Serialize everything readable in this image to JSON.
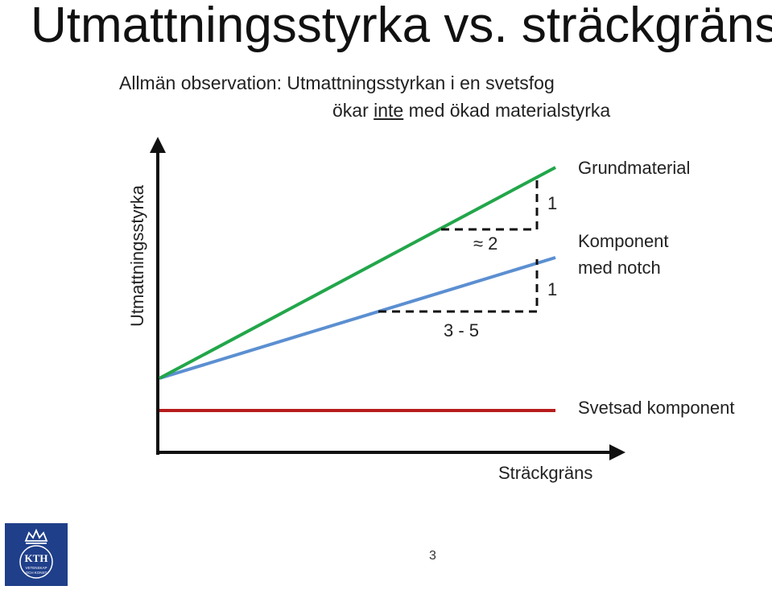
{
  "slide": {
    "title": "Utmattningsstyrka vs. sträckgräns",
    "observation_line1": "Allmän observation: Utmattningsstyrkan i en svetsfog",
    "observation_line2_before": "ökar ",
    "observation_line2_underlined": "inte",
    "observation_line2_after": " med ökad materialstyrka",
    "page_number": "3"
  },
  "diagram": {
    "y_axis_label": "Utmattningsstyrka",
    "x_axis_label": "Sträckgräns",
    "lines": {
      "base_material": {
        "label": "Grundmaterial",
        "color": "#22a64a"
      },
      "notched_component": {
        "label_line1": "Komponent",
        "label_line2": "med notch",
        "color": "#5b8fd1"
      },
      "welded_component": {
        "label": "Svetsad komponent",
        "color": "#b81c1c"
      }
    },
    "slope_triangles": {
      "upper": {
        "rise": "1",
        "run": "≈ 2"
      },
      "lower": {
        "rise": "1",
        "run": "3 - 5"
      }
    }
  },
  "logo": {
    "text": "KTH",
    "subtext_line1": "VETENSKAP",
    "subtext_line2": "OCH KONST",
    "color": "#1f3f8a"
  }
}
